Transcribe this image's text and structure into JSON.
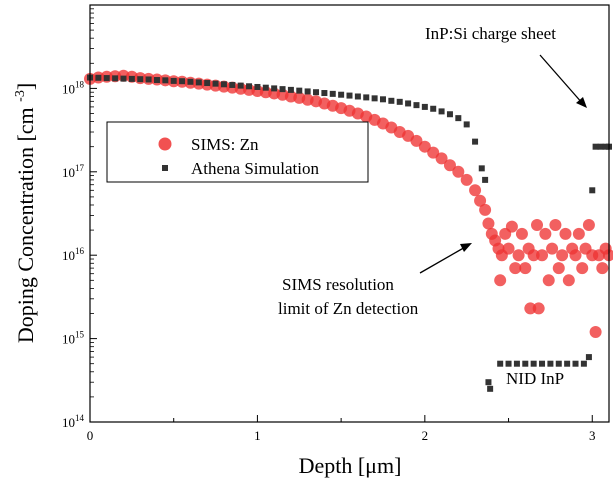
{
  "chart_data": {
    "type": "scatter",
    "xlabel": "Depth [μm]",
    "ylabel": "Doping Concentration [cm⁻³]",
    "xlim": [
      0,
      3.1
    ],
    "ylim": [
      100000000000000.0,
      1e+19
    ],
    "yscale": "log",
    "grid": false,
    "legend_position": "left-middle",
    "x_ticks": [
      {
        "value": 0,
        "label": "0"
      },
      {
        "value": 1,
        "label": "1"
      },
      {
        "value": 2,
        "label": "2"
      },
      {
        "value": 3,
        "label": "3"
      }
    ],
    "y_ticks": [
      {
        "value": 100000000000000.0,
        "label": "10",
        "exp": "14"
      },
      {
        "value": 1000000000000000.0,
        "label": "10",
        "exp": "15"
      },
      {
        "value": 1e+16,
        "label": "10",
        "exp": "16"
      },
      {
        "value": 1e+17,
        "label": "10",
        "exp": "17"
      },
      {
        "value": 1e+18,
        "label": "10",
        "exp": "18"
      }
    ],
    "series": [
      {
        "name": "SIMS: Zn",
        "marker": "circle",
        "color": "#ee3333",
        "points": [
          [
            0.0,
            1.3e+18
          ],
          [
            0.05,
            1.35e+18
          ],
          [
            0.1,
            1.38e+18
          ],
          [
            0.15,
            1.4e+18
          ],
          [
            0.2,
            1.42e+18
          ],
          [
            0.25,
            1.38e+18
          ],
          [
            0.3,
            1.33e+18
          ],
          [
            0.35,
            1.3e+18
          ],
          [
            0.4,
            1.28e+18
          ],
          [
            0.45,
            1.25e+18
          ],
          [
            0.5,
            1.22e+18
          ],
          [
            0.55,
            1.2e+18
          ],
          [
            0.6,
            1.17e+18
          ],
          [
            0.65,
            1.14e+18
          ],
          [
            0.7,
            1.11e+18
          ],
          [
            0.75,
            1.08e+18
          ],
          [
            0.8,
            1.05e+18
          ],
          [
            0.85,
            1.02e+18
          ],
          [
            0.9,
            9.9e+17
          ],
          [
            0.95,
            9.6e+17
          ],
          [
            1.0,
            9.3e+17
          ],
          [
            1.05,
            9e+17
          ],
          [
            1.1,
            8.7e+17
          ],
          [
            1.15,
            8.4e+17
          ],
          [
            1.2,
            8e+17
          ],
          [
            1.25,
            7.7e+17
          ],
          [
            1.3,
            7.3e+17
          ],
          [
            1.35,
            7e+17
          ],
          [
            1.4,
            6.6e+17
          ],
          [
            1.45,
            6.2e+17
          ],
          [
            1.5,
            5.8e+17
          ],
          [
            1.55,
            5.4e+17
          ],
          [
            1.6,
            5e+17
          ],
          [
            1.65,
            4.6e+17
          ],
          [
            1.7,
            4.2e+17
          ],
          [
            1.75,
            3.8e+17
          ],
          [
            1.8,
            3.4e+17
          ],
          [
            1.85,
            3e+17
          ],
          [
            1.9,
            2.7e+17
          ],
          [
            1.95,
            2.35e+17
          ],
          [
            2.0,
            2e+17
          ],
          [
            2.05,
            1.7e+17
          ],
          [
            2.1,
            1.45e+17
          ],
          [
            2.15,
            1.2e+17
          ],
          [
            2.2,
            1e+17
          ],
          [
            2.25,
            8e+16
          ],
          [
            2.3,
            6e+16
          ],
          [
            2.33,
            4.5e+16
          ],
          [
            2.36,
            3.5e+16
          ],
          [
            2.38,
            2.4e+16
          ],
          [
            2.4,
            1.8e+16
          ],
          [
            2.42,
            1.5e+16
          ],
          [
            2.44,
            1.2e+16
          ],
          [
            2.45,
            5000000000000000.0
          ],
          [
            2.46,
            1e+16
          ],
          [
            2.48,
            1.8e+16
          ],
          [
            2.5,
            1.2e+16
          ],
          [
            2.52,
            2.2e+16
          ],
          [
            2.54,
            7000000000000000.0
          ],
          [
            2.56,
            1e+16
          ],
          [
            2.58,
            1.8e+16
          ],
          [
            2.6,
            7000000000000000.0
          ],
          [
            2.62,
            1.2e+16
          ],
          [
            2.63,
            2300000000000000.0
          ],
          [
            2.65,
            1e+16
          ],
          [
            2.67,
            2.3e+16
          ],
          [
            2.68,
            2300000000000000.0
          ],
          [
            2.7,
            1e+16
          ],
          [
            2.72,
            1.8e+16
          ],
          [
            2.74,
            5000000000000000.0
          ],
          [
            2.76,
            1.2e+16
          ],
          [
            2.78,
            2.3e+16
          ],
          [
            2.8,
            7000000000000000.0
          ],
          [
            2.82,
            1e+16
          ],
          [
            2.84,
            1.8e+16
          ],
          [
            2.86,
            5000000000000000.0
          ],
          [
            2.88,
            1.2e+16
          ],
          [
            2.9,
            1e+16
          ],
          [
            2.92,
            1.8e+16
          ],
          [
            2.94,
            7000000000000000.0
          ],
          [
            2.96,
            1.2e+16
          ],
          [
            2.98,
            2.3e+16
          ],
          [
            3.0,
            1e+16
          ],
          [
            3.02,
            1200000000000000.0
          ],
          [
            3.04,
            1e+16
          ],
          [
            3.06,
            7000000000000000.0
          ],
          [
            3.08,
            1.2e+16
          ],
          [
            3.1,
            1e+16
          ]
        ]
      },
      {
        "name": "Athena Simulation",
        "marker": "square",
        "color": "#333333",
        "points": [
          [
            0.0,
            1.35e+18
          ],
          [
            0.05,
            1.34e+18
          ],
          [
            0.1,
            1.33e+18
          ],
          [
            0.15,
            1.32e+18
          ],
          [
            0.2,
            1.31e+18
          ],
          [
            0.25,
            1.3e+18
          ],
          [
            0.3,
            1.29e+18
          ],
          [
            0.35,
            1.28e+18
          ],
          [
            0.4,
            1.26e+18
          ],
          [
            0.45,
            1.25e+18
          ],
          [
            0.5,
            1.23e+18
          ],
          [
            0.55,
            1.22e+18
          ],
          [
            0.6,
            1.2e+18
          ],
          [
            0.65,
            1.18e+18
          ],
          [
            0.7,
            1.16e+18
          ],
          [
            0.75,
            1.14e+18
          ],
          [
            0.8,
            1.12e+18
          ],
          [
            0.85,
            1.1e+18
          ],
          [
            0.9,
            1.08e+18
          ],
          [
            0.95,
            1.06e+18
          ],
          [
            1.0,
            1.04e+18
          ],
          [
            1.05,
            1.02e+18
          ],
          [
            1.1,
            1e+18
          ],
          [
            1.15,
            9.8e+17
          ],
          [
            1.2,
            9.6e+17
          ],
          [
            1.25,
            9.4e+17
          ],
          [
            1.3,
            9.2e+17
          ],
          [
            1.35,
            9e+17
          ],
          [
            1.4,
            8.8e+17
          ],
          [
            1.45,
            8.6e+17
          ],
          [
            1.5,
            8.4e+17
          ],
          [
            1.55,
            8.2e+17
          ],
          [
            1.6,
            8e+17
          ],
          [
            1.65,
            7.8e+17
          ],
          [
            1.7,
            7.6e+17
          ],
          [
            1.75,
            7.4e+17
          ],
          [
            1.8,
            7.1e+17
          ],
          [
            1.85,
            6.9e+17
          ],
          [
            1.9,
            6.6e+17
          ],
          [
            1.95,
            6.3e+17
          ],
          [
            2.0,
            6e+17
          ],
          [
            2.05,
            5.7e+17
          ],
          [
            2.1,
            5.3e+17
          ],
          [
            2.15,
            4.9e+17
          ],
          [
            2.2,
            4.4e+17
          ],
          [
            2.25,
            3.7e+17
          ],
          [
            2.3,
            2.3e+17
          ],
          [
            2.34,
            1.1e+17
          ],
          [
            2.36,
            8e+16
          ],
          [
            2.38,
            300000000000000.0
          ],
          [
            2.39,
            250000000000000.0
          ],
          [
            2.45,
            500000000000000.0
          ],
          [
            2.5,
            500000000000000.0
          ],
          [
            2.55,
            500000000000000.0
          ],
          [
            2.6,
            500000000000000.0
          ],
          [
            2.65,
            500000000000000.0
          ],
          [
            2.7,
            500000000000000.0
          ],
          [
            2.75,
            500000000000000.0
          ],
          [
            2.8,
            500000000000000.0
          ],
          [
            2.85,
            500000000000000.0
          ],
          [
            2.9,
            500000000000000.0
          ],
          [
            2.95,
            500000000000000.0
          ],
          [
            2.98,
            600000000000000.0
          ],
          [
            3.0,
            6e+16
          ],
          [
            3.02,
            2e+17
          ],
          [
            3.05,
            2e+17
          ],
          [
            3.08,
            2e+17
          ],
          [
            3.1,
            2e+17
          ]
        ]
      }
    ],
    "annotations": [
      {
        "text": "InP:Si charge sheet"
      },
      {
        "text": "SIMS resolution"
      },
      {
        "text": "limit of Zn detection"
      },
      {
        "text": "NID InP"
      }
    ]
  }
}
